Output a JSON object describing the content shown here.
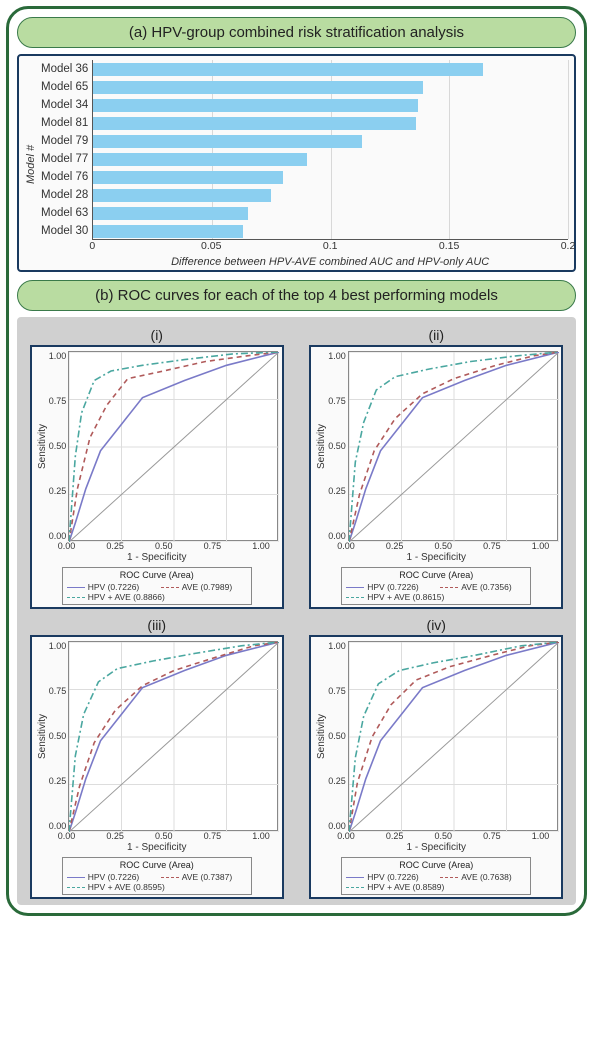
{
  "panel_a": {
    "title": "(a) HPV-group combined risk stratification analysis",
    "ylabel": "Model #",
    "xlabel": "Difference between HPV-AVE combined AUC and HPV-only AUC",
    "xlim": [
      0,
      0.2
    ],
    "xtick_step": 0.05,
    "xticks": [
      "0",
      "0.05",
      "0.1",
      "0.15",
      "0.2"
    ],
    "xticks_vals": [
      0,
      0.05,
      0.1,
      0.15,
      0.2
    ],
    "bar_color": "#8bcff0",
    "grid_color": "#d8d8d8",
    "background_color": "#fafafa",
    "label_fontsize": 11,
    "bars": [
      {
        "label": "Model 36",
        "value": 0.164
      },
      {
        "label": "Model 65",
        "value": 0.139
      },
      {
        "label": "Model 34",
        "value": 0.137
      },
      {
        "label": "Model 81",
        "value": 0.136
      },
      {
        "label": "Model 79",
        "value": 0.113
      },
      {
        "label": "Model 77",
        "value": 0.09
      },
      {
        "label": "Model 76",
        "value": 0.08
      },
      {
        "label": "Model 28",
        "value": 0.075
      },
      {
        "label": "Model 63",
        "value": 0.065
      },
      {
        "label": "Model 30",
        "value": 0.063
      }
    ]
  },
  "panel_b": {
    "title": "(b) ROC curves for each of the top 4 best performing models",
    "subplot_bg": "#d0d0d0",
    "chart_bg": "#ffffff",
    "xlabel": "1 - Specificity",
    "ylabel": "Sensitivity",
    "xlim": [
      0,
      1
    ],
    "ylim": [
      0,
      1
    ],
    "ticks": [
      "0.00",
      "0.25",
      "0.50",
      "0.75",
      "1.00"
    ],
    "tick_vals": [
      0,
      0.25,
      0.5,
      0.75,
      1.0
    ],
    "grid_color": "#dddddd",
    "diag_color": "#999999",
    "colors": {
      "hpv": "#7a7ac8",
      "ave": "#b05a5a",
      "combined": "#4aa7a0"
    },
    "line_styles": {
      "hpv": "solid",
      "ave": "dashed",
      "combined": "dashdot"
    },
    "legend_title": "ROC Curve (Area)",
    "subplots": [
      {
        "label": "(i)",
        "legend": [
          {
            "key": "hpv",
            "text": "HPV (0.7226)"
          },
          {
            "key": "ave",
            "text": "AVE (0.7989)"
          },
          {
            "key": "combined",
            "text": "HPV + AVE (0.8866)"
          }
        ],
        "curves": {
          "hpv": [
            [
              0,
              0
            ],
            [
              0.03,
              0.1
            ],
            [
              0.08,
              0.28
            ],
            [
              0.15,
              0.48
            ],
            [
              0.25,
              0.62
            ],
            [
              0.35,
              0.76
            ],
            [
              0.55,
              0.85
            ],
            [
              0.75,
              0.93
            ],
            [
              1,
              1
            ]
          ],
          "ave": [
            [
              0,
              0
            ],
            [
              0.04,
              0.28
            ],
            [
              0.1,
              0.55
            ],
            [
              0.18,
              0.72
            ],
            [
              0.28,
              0.86
            ],
            [
              0.45,
              0.9
            ],
            [
              0.65,
              0.95
            ],
            [
              0.85,
              0.98
            ],
            [
              1,
              1
            ]
          ],
          "combined": [
            [
              0,
              0
            ],
            [
              0.03,
              0.45
            ],
            [
              0.06,
              0.68
            ],
            [
              0.12,
              0.85
            ],
            [
              0.2,
              0.9
            ],
            [
              0.35,
              0.93
            ],
            [
              0.55,
              0.96
            ],
            [
              0.78,
              0.99
            ],
            [
              1,
              1
            ]
          ]
        }
      },
      {
        "label": "(ii)",
        "legend": [
          {
            "key": "hpv",
            "text": "HPV (0.7226)"
          },
          {
            "key": "ave",
            "text": "AVE (0.7356)"
          },
          {
            "key": "combined",
            "text": "HPV + AVE (0.8615)"
          }
        ],
        "curves": {
          "hpv": [
            [
              0,
              0
            ],
            [
              0.03,
              0.1
            ],
            [
              0.08,
              0.28
            ],
            [
              0.15,
              0.48
            ],
            [
              0.25,
              0.62
            ],
            [
              0.35,
              0.76
            ],
            [
              0.55,
              0.85
            ],
            [
              0.75,
              0.93
            ],
            [
              1,
              1
            ]
          ],
          "ave": [
            [
              0,
              0
            ],
            [
              0.05,
              0.25
            ],
            [
              0.12,
              0.48
            ],
            [
              0.22,
              0.65
            ],
            [
              0.35,
              0.78
            ],
            [
              0.5,
              0.86
            ],
            [
              0.7,
              0.93
            ],
            [
              0.88,
              0.98
            ],
            [
              1,
              1
            ]
          ],
          "combined": [
            [
              0,
              0
            ],
            [
              0.03,
              0.42
            ],
            [
              0.07,
              0.63
            ],
            [
              0.13,
              0.8
            ],
            [
              0.22,
              0.87
            ],
            [
              0.38,
              0.91
            ],
            [
              0.58,
              0.95
            ],
            [
              0.8,
              0.98
            ],
            [
              1,
              1
            ]
          ]
        }
      },
      {
        "label": "(iii)",
        "legend": [
          {
            "key": "hpv",
            "text": "HPV (0.7226)"
          },
          {
            "key": "ave",
            "text": "AVE (0.7387)"
          },
          {
            "key": "combined",
            "text": "HPV + AVE (0.8595)"
          }
        ],
        "curves": {
          "hpv": [
            [
              0,
              0
            ],
            [
              0.03,
              0.1
            ],
            [
              0.08,
              0.28
            ],
            [
              0.15,
              0.48
            ],
            [
              0.25,
              0.62
            ],
            [
              0.35,
              0.76
            ],
            [
              0.55,
              0.85
            ],
            [
              0.75,
              0.93
            ],
            [
              1,
              1
            ]
          ],
          "ave": [
            [
              0,
              0
            ],
            [
              0.05,
              0.24
            ],
            [
              0.12,
              0.47
            ],
            [
              0.22,
              0.64
            ],
            [
              0.35,
              0.77
            ],
            [
              0.5,
              0.85
            ],
            [
              0.7,
              0.92
            ],
            [
              0.88,
              0.98
            ],
            [
              1,
              1
            ]
          ],
          "combined": [
            [
              0,
              0
            ],
            [
              0.03,
              0.4
            ],
            [
              0.07,
              0.62
            ],
            [
              0.14,
              0.79
            ],
            [
              0.23,
              0.86
            ],
            [
              0.4,
              0.9
            ],
            [
              0.6,
              0.94
            ],
            [
              0.82,
              0.98
            ],
            [
              1,
              1
            ]
          ]
        }
      },
      {
        "label": "(iv)",
        "legend": [
          {
            "key": "hpv",
            "text": "HPV (0.7226)"
          },
          {
            "key": "ave",
            "text": "AVE (0.7638)"
          },
          {
            "key": "combined",
            "text": "HPV + AVE (0.8589)"
          }
        ],
        "curves": {
          "hpv": [
            [
              0,
              0
            ],
            [
              0.03,
              0.1
            ],
            [
              0.08,
              0.28
            ],
            [
              0.15,
              0.48
            ],
            [
              0.25,
              0.62
            ],
            [
              0.35,
              0.76
            ],
            [
              0.55,
              0.85
            ],
            [
              0.75,
              0.93
            ],
            [
              1,
              1
            ]
          ],
          "ave": [
            [
              0,
              0
            ],
            [
              0.04,
              0.26
            ],
            [
              0.11,
              0.5
            ],
            [
              0.2,
              0.67
            ],
            [
              0.32,
              0.8
            ],
            [
              0.48,
              0.87
            ],
            [
              0.68,
              0.93
            ],
            [
              0.86,
              0.98
            ],
            [
              1,
              1
            ]
          ],
          "combined": [
            [
              0,
              0
            ],
            [
              0.03,
              0.39
            ],
            [
              0.07,
              0.61
            ],
            [
              0.14,
              0.78
            ],
            [
              0.24,
              0.85
            ],
            [
              0.4,
              0.89
            ],
            [
              0.6,
              0.93
            ],
            [
              0.82,
              0.98
            ],
            [
              1,
              1
            ]
          ]
        }
      }
    ]
  }
}
